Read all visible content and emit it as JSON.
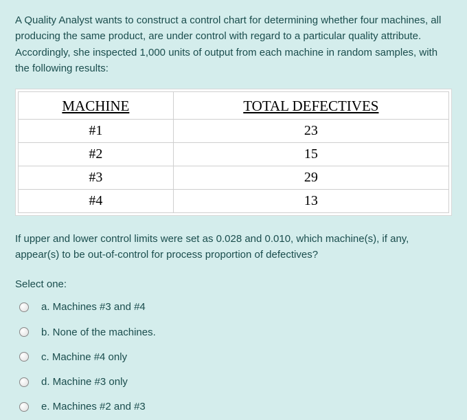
{
  "question": {
    "intro": "A Quality Analyst wants to construct a control chart for determining whether four machines, all producing the same product, are under control with regard to a particular quality attribute. Accordingly, she inspected 1,000 units of output from each machine in random samples, with the following results:",
    "followup": "If upper and lower control limits were set as 0.028 and 0.010, which machine(s), if any, appear(s) to be out-of-control for process proportion of defectives?"
  },
  "table": {
    "type": "table",
    "columns": [
      "MACHINE",
      "TOTAL DEFECTIVES"
    ],
    "rows": [
      [
        "#1",
        "23"
      ],
      [
        "#2",
        "15"
      ],
      [
        "#3",
        "29"
      ],
      [
        "#4",
        "13"
      ]
    ],
    "col_widths_pct": [
      36,
      64
    ],
    "header_font": "Times New Roman",
    "header_fontsize_pt": 16,
    "cell_fontsize_pt": 15,
    "border_color": "#cfcfcf",
    "background_color": "#ffffff",
    "text_color": "#000000"
  },
  "prompt": {
    "select_one": "Select one:"
  },
  "options": {
    "a": "a. Machines #3 and #4",
    "b": "b. None of the machines.",
    "c": "c. Machine #4 only",
    "d": "d. Machine #3 only",
    "e": "e. Machines #2 and #3"
  },
  "style": {
    "page_background": "#d4edec",
    "text_color": "#1a4d4d",
    "body_font": "Arial",
    "body_fontsize_pt": 11
  }
}
